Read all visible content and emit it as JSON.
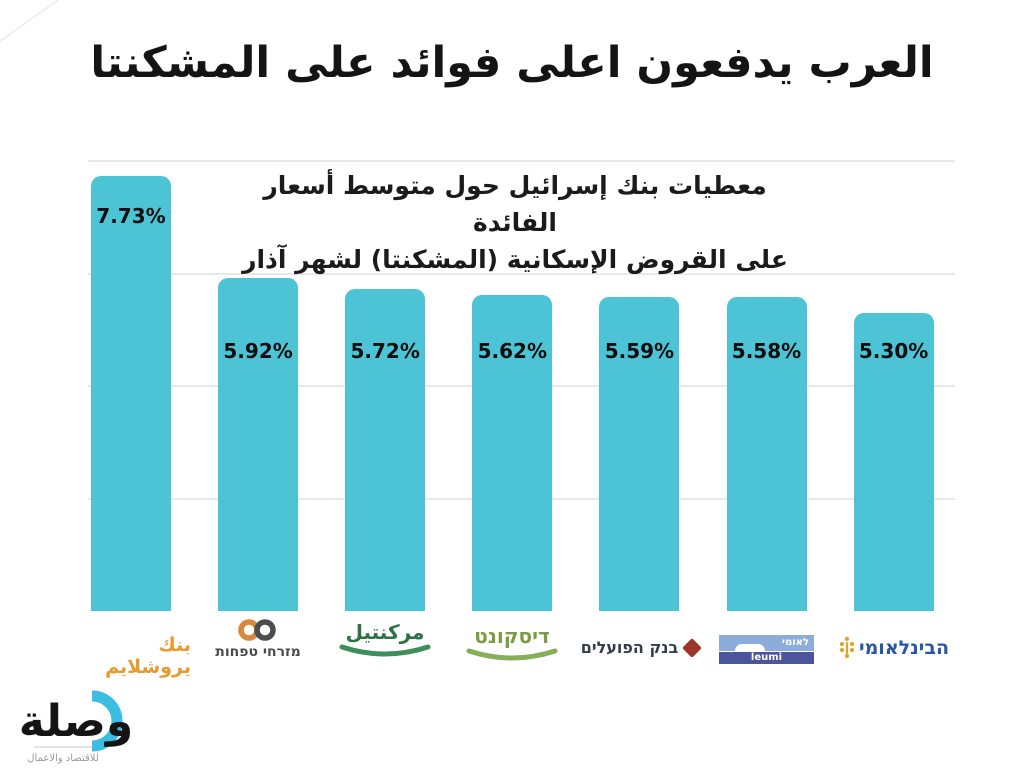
{
  "page": {
    "headline": "العرب يدفعون اعلى فوائد على المشكنتا"
  },
  "subtitle": {
    "line1": "معطيات بنك إسرائيل حول متوسط  أسعار الفائدة",
    "line2": "على القروض الإسكانية (المشكنتا) لشهر آذار"
  },
  "chart_data": {
    "type": "bar",
    "title": "العرب يدفعون اعلى فوائد على المشكنتا",
    "subtitle": "معطيات بنك إسرائيل حول متوسط أسعار الفائدة على القروض الإسكانية (المشكنتا) لشهر آذار",
    "categories": [
      "بنك يروشلايم",
      "מזרחי טפחות",
      "مركنتيل",
      "דיסקונט",
      "בנק הפועלים",
      "לאומי leumi",
      "הבינלאומי"
    ],
    "values": [
      7.73,
      5.92,
      5.72,
      5.62,
      5.59,
      5.58,
      5.3
    ],
    "value_labels": [
      "7.73%",
      "5.92%",
      "5.72%",
      "5.62%",
      "5.59%",
      "5.58%",
      "5.30%"
    ],
    "xlabel": "",
    "ylabel": "",
    "ylim": [
      0,
      8
    ],
    "gridlines_pct": [
      2,
      4,
      6,
      8
    ],
    "grid": "horizontal",
    "legend": "none",
    "bar_color": "#4DC4D5"
  },
  "banks": [
    {
      "id": "bank-of-jerusalem",
      "text": "بنك يروشلايم",
      "text_color": "#E79B2F"
    },
    {
      "id": "mizrahi-tefahot",
      "text": "מזרחי טפחות",
      "text_color": "#4A4A4A",
      "icon": "infinity-icon",
      "icon_colors": [
        "#D9873C",
        "#4D4D4D"
      ]
    },
    {
      "id": "mercantile",
      "text": "مركنتيل",
      "text_color": "#2E7144",
      "arc_color": "#3E8E59"
    },
    {
      "id": "discount",
      "text": "דיסקונט",
      "text_color": "#7B9C44",
      "arc_color": "#87AF5B"
    },
    {
      "id": "hapoalim",
      "text": "בנק הפועלים",
      "text_color": "#333E4D",
      "icon": "diamond-icon",
      "icon_color": "#9C352B"
    },
    {
      "id": "leumi",
      "text_top": "לאומי",
      "text_bottom": "leumi",
      "band_colors": [
        "#8CACDA",
        "#4C549D"
      ]
    },
    {
      "id": "fibi",
      "text": "הבינלאומי",
      "text_color": "#2A57A5",
      "icon": "menorah-icon",
      "icon_color": "#DFA32A"
    }
  ],
  "watermark": {
    "name": "وصلة",
    "tagline": "للاقتصاد والاعمال",
    "accent": "#3BBEDF"
  },
  "colors": {
    "background": "#FFFFFF",
    "bar": "#4DC4D5",
    "gridline": "#E9E9E9",
    "headline_text": "#141414"
  }
}
